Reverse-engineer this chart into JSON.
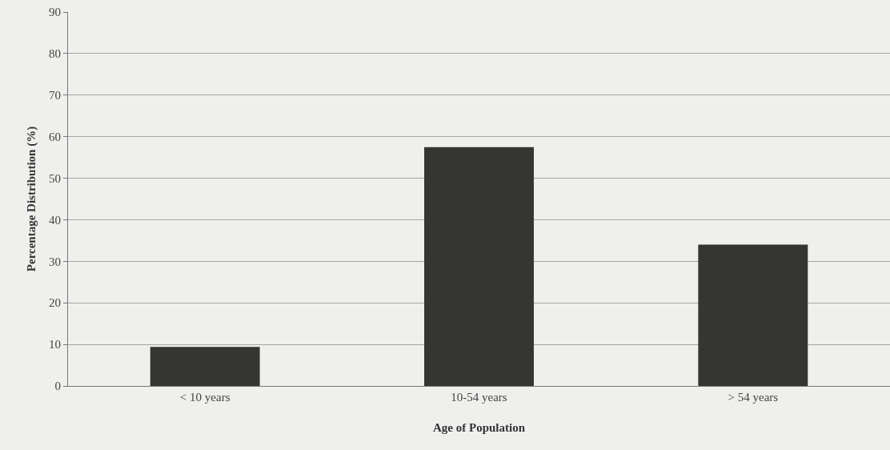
{
  "chart_data": {
    "type": "bar",
    "xlabel": "Age of Population",
    "ylabel": "Percentage Distribution (%)",
    "categories": [
      "< 10 years",
      "10-54 years",
      "> 54 years"
    ],
    "values": [
      9.4,
      57.5,
      34
    ],
    "color": "#353533",
    "ylim": [
      0,
      90
    ],
    "yticks": [
      0,
      10,
      20,
      30,
      40,
      50,
      60,
      70,
      80,
      90
    ],
    "grid": "y",
    "legend": false
  }
}
